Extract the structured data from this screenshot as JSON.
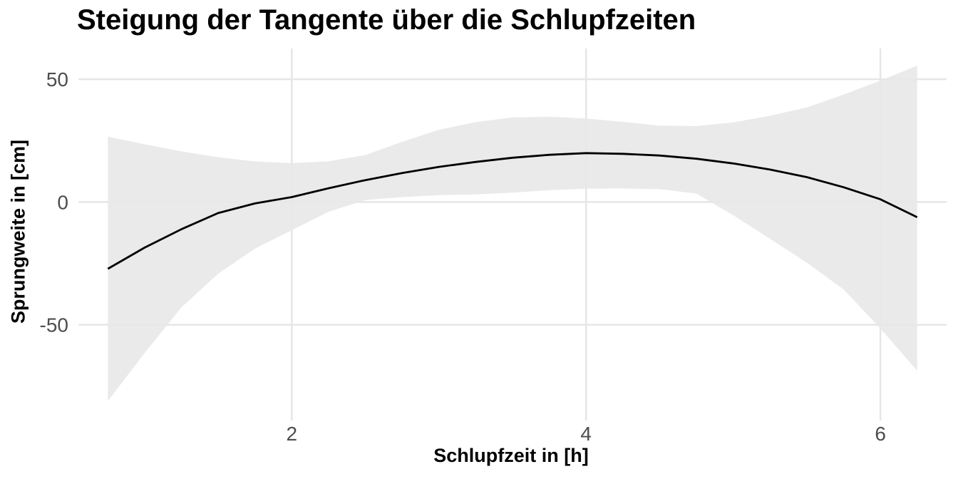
{
  "chart_data": {
    "type": "line",
    "title": "Steigung der Tangente über die Schlupfzeiten",
    "xlabel": "Schlupfzeit in [h]",
    "ylabel": "Sprungweite in [cm]",
    "xlim": [
      0.55,
      6.45
    ],
    "ylim": [
      -89,
      62.5
    ],
    "x_ticks": [
      2,
      4,
      6
    ],
    "y_ticks": [
      -50,
      0,
      50
    ],
    "x_tick_labels": [
      "2",
      "4",
      "6"
    ],
    "y_tick_labels": [
      "-50",
      "0",
      "50"
    ],
    "grid": true,
    "legend": "none",
    "series": [
      {
        "values": [
          {
            "x": 0.75,
            "y": -27.2
          },
          {
            "x": 1.0,
            "y": -18.6
          },
          {
            "x": 1.25,
            "y": -11.1
          },
          {
            "x": 1.5,
            "y": -4.5
          },
          {
            "x": 1.75,
            "y": -0.6
          },
          {
            "x": 2.0,
            "y": 2.0
          },
          {
            "x": 2.25,
            "y": 5.6
          },
          {
            "x": 2.5,
            "y": 8.9
          },
          {
            "x": 2.75,
            "y": 11.8
          },
          {
            "x": 3.0,
            "y": 14.3
          },
          {
            "x": 3.25,
            "y": 16.3
          },
          {
            "x": 3.5,
            "y": 18.0
          },
          {
            "x": 3.75,
            "y": 19.2
          },
          {
            "x": 4.0,
            "y": 19.9
          },
          {
            "x": 4.25,
            "y": 19.6
          },
          {
            "x": 4.5,
            "y": 18.9
          },
          {
            "x": 4.75,
            "y": 17.6
          },
          {
            "x": 5.0,
            "y": 15.7
          },
          {
            "x": 5.25,
            "y": 13.2
          },
          {
            "x": 5.5,
            "y": 10.1
          },
          {
            "x": 5.75,
            "y": 6.0
          },
          {
            "x": 6.0,
            "y": 1.1
          },
          {
            "x": 6.25,
            "y": -6.2
          }
        ]
      }
    ],
    "confidence_band": {
      "x": [
        0.75,
        1.0,
        1.25,
        1.5,
        1.75,
        2.0,
        2.25,
        2.5,
        2.75,
        3.0,
        3.25,
        3.5,
        3.75,
        4.0,
        4.25,
        4.5,
        4.75,
        5.0,
        5.25,
        5.5,
        5.75,
        6.0,
        6.25
      ],
      "upper": [
        26.6,
        23.5,
        20.6,
        18.2,
        16.5,
        15.8,
        16.6,
        19.1,
        24.5,
        29.4,
        32.5,
        34.4,
        34.7,
        34.0,
        32.6,
        31.1,
        30.9,
        32.4,
        35.1,
        38.5,
        43.7,
        49.4,
        55.5
      ],
      "lower": [
        -81.1,
        -61.5,
        -42.9,
        -29.2,
        -19.0,
        -11.5,
        -4.0,
        0.8,
        2.0,
        2.8,
        3.1,
        3.8,
        4.8,
        5.4,
        5.5,
        5.2,
        3.4,
        -5.4,
        -15.0,
        -24.7,
        -35.6,
        -51.5,
        -68.7
      ],
      "color": "#e8e8e8"
    },
    "colors": {
      "line": "#000000",
      "grid": "#e6e6e6",
      "tick_label": "#4d4d4d"
    }
  }
}
